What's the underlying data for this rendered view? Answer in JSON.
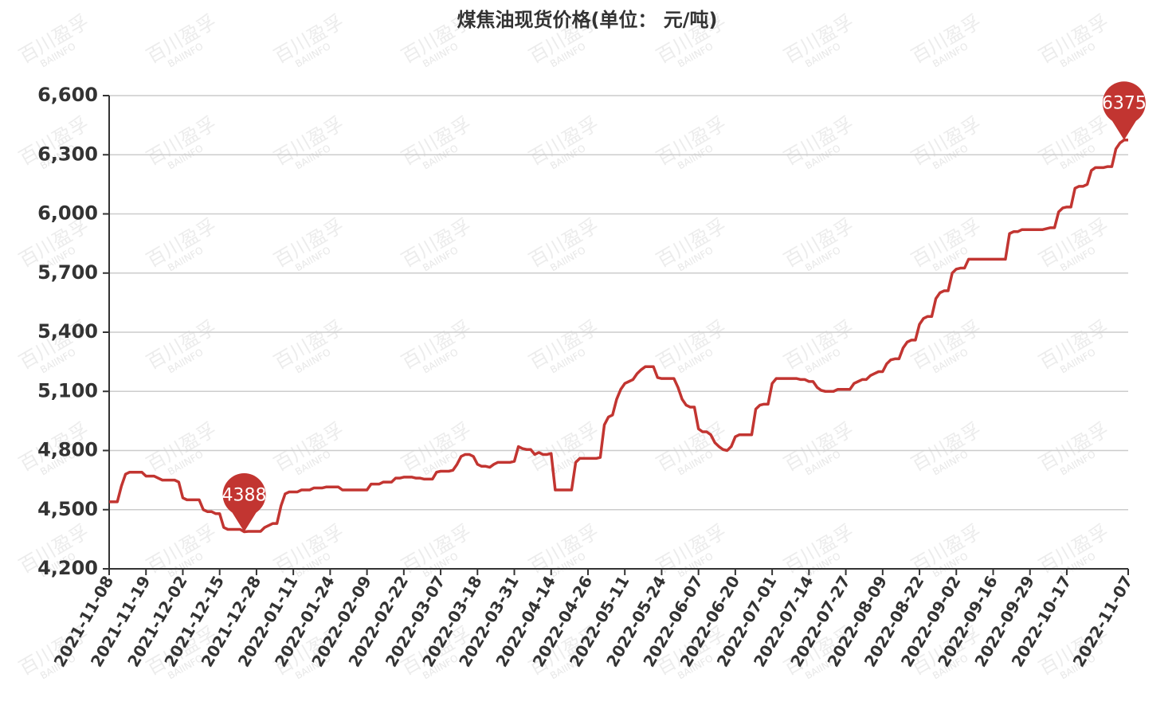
{
  "chart_data": {
    "type": "line",
    "title": "煤焦油现货价格(单位： 元/吨)",
    "watermark": "百川盈孚",
    "watermark_sub": "BAIINFO",
    "color": "#c23531",
    "ylim": [
      4200,
      6600
    ],
    "yticks": [
      {
        "value": 4200,
        "label": "4,200"
      },
      {
        "value": 4500,
        "label": "4,500"
      },
      {
        "value": 4800,
        "label": "4,800"
      },
      {
        "value": 5100,
        "label": "5,100"
      },
      {
        "value": 5400,
        "label": "5,400"
      },
      {
        "value": 5700,
        "label": "5,700"
      },
      {
        "value": 6000,
        "label": "6,000"
      },
      {
        "value": 6300,
        "label": "6,300"
      },
      {
        "value": 6600,
        "label": "6,600"
      }
    ],
    "grid": true,
    "categories": [
      "2021-11-08",
      null,
      null,
      null,
      null,
      null,
      null,
      null,
      null,
      "2021-11-19",
      null,
      null,
      null,
      null,
      null,
      null,
      null,
      null,
      "2021-12-02",
      null,
      null,
      null,
      null,
      null,
      null,
      null,
      null,
      "2021-12-15",
      null,
      null,
      null,
      null,
      null,
      null,
      null,
      null,
      "2021-12-28",
      null,
      null,
      null,
      null,
      null,
      null,
      null,
      null,
      "2022-01-11",
      null,
      null,
      null,
      null,
      null,
      null,
      null,
      null,
      "2022-01-24",
      null,
      null,
      null,
      null,
      null,
      null,
      null,
      null,
      "2022-02-09",
      null,
      null,
      null,
      null,
      null,
      null,
      null,
      null,
      "2022-02-22",
      null,
      null,
      null,
      null,
      null,
      null,
      null,
      null,
      "2022-03-07",
      null,
      null,
      null,
      null,
      null,
      null,
      null,
      null,
      "2022-03-18",
      null,
      null,
      null,
      null,
      null,
      null,
      null,
      null,
      "2022-03-31",
      null,
      null,
      null,
      null,
      null,
      null,
      null,
      null,
      "2022-04-14",
      null,
      null,
      null,
      null,
      null,
      null,
      null,
      null,
      "2022-04-26",
      null,
      null,
      null,
      null,
      null,
      null,
      null,
      null,
      "2022-05-11",
      null,
      null,
      null,
      null,
      null,
      null,
      null,
      null,
      "2022-05-24",
      null,
      null,
      null,
      null,
      null,
      null,
      null,
      null,
      "2022-06-07",
      null,
      null,
      null,
      null,
      null,
      null,
      null,
      null,
      "2022-06-20",
      null,
      null,
      null,
      null,
      null,
      null,
      null,
      null,
      "2022-07-01",
      null,
      null,
      null,
      null,
      null,
      null,
      null,
      null,
      "2022-07-14",
      null,
      null,
      null,
      null,
      null,
      null,
      null,
      null,
      "2022-07-27",
      null,
      null,
      null,
      null,
      null,
      null,
      null,
      null,
      "2022-08-09",
      null,
      null,
      null,
      null,
      null,
      null,
      null,
      null,
      "2022-08-22",
      null,
      null,
      null,
      null,
      null,
      null,
      null,
      null,
      "2022-09-02",
      null,
      null,
      null,
      null,
      null,
      null,
      null,
      null,
      "2022-09-16",
      null,
      null,
      null,
      null,
      null,
      null,
      null,
      null,
      "2022-09-29",
      null,
      null,
      null,
      null,
      null,
      null,
      null,
      null,
      "2022-10-17",
      null,
      null,
      null,
      null,
      null,
      null,
      null,
      null,
      null,
      null,
      null,
      null,
      null,
      null,
      "2022-11-07"
    ],
    "values": [
      4540,
      4540,
      4540,
      4620,
      4680,
      4690,
      4690,
      4690,
      4690,
      4670,
      4670,
      4670,
      4660,
      4650,
      4650,
      4650,
      4650,
      4640,
      4560,
      4550,
      4550,
      4550,
      4550,
      4500,
      4490,
      4490,
      4480,
      4480,
      4410,
      4400,
      4400,
      4400,
      4400,
      4388,
      4390,
      4390,
      4390,
      4390,
      4410,
      4420,
      4430,
      4430,
      4520,
      4580,
      4590,
      4590,
      4590,
      4600,
      4600,
      4600,
      4610,
      4610,
      4610,
      4615,
      4615,
      4615,
      4615,
      4600,
      4600,
      4600,
      4600,
      4600,
      4600,
      4600,
      4630,
      4630,
      4630,
      4640,
      4640,
      4640,
      4660,
      4660,
      4665,
      4665,
      4665,
      4660,
      4660,
      4655,
      4655,
      4655,
      4690,
      4695,
      4695,
      4695,
      4700,
      4730,
      4770,
      4780,
      4780,
      4770,
      4730,
      4720,
      4720,
      4715,
      4730,
      4740,
      4740,
      4740,
      4740,
      4745,
      4820,
      4810,
      4805,
      4805,
      4780,
      4790,
      4780,
      4780,
      4785,
      4600,
      4600,
      4600,
      4600,
      4600,
      4740,
      4760,
      4760,
      4760,
      4760,
      4760,
      4765,
      4930,
      4970,
      4980,
      5060,
      5110,
      5140,
      5150,
      5160,
      5190,
      5210,
      5225,
      5225,
      5225,
      5170,
      5165,
      5165,
      5165,
      5165,
      5120,
      5060,
      5030,
      5020,
      5020,
      4910,
      4895,
      4895,
      4880,
      4840,
      4820,
      4805,
      4800,
      4820,
      4870,
      4880,
      4880,
      4880,
      4880,
      5010,
      5030,
      5035,
      5035,
      5140,
      5165,
      5165,
      5165,
      5165,
      5165,
      5165,
      5160,
      5160,
      5150,
      5150,
      5120,
      5105,
      5100,
      5100,
      5100,
      5110,
      5110,
      5110,
      5110,
      5140,
      5150,
      5160,
      5160,
      5180,
      5190,
      5200,
      5200,
      5240,
      5260,
      5265,
      5265,
      5320,
      5350,
      5360,
      5360,
      5440,
      5470,
      5480,
      5480,
      5570,
      5600,
      5610,
      5610,
      5700,
      5720,
      5725,
      5725,
      5770,
      5770,
      5770,
      5770,
      5770,
      5770,
      5770,
      5770,
      5770,
      5770,
      5900,
      5910,
      5910,
      5920,
      5920,
      5920,
      5920,
      5920,
      5920,
      5925,
      5930,
      5930,
      6010,
      6030,
      6035,
      6035,
      6130,
      6140,
      6140,
      6150,
      6220,
      6235,
      6235,
      6235,
      6240,
      6240,
      6330,
      6360,
      6375,
      6375
    ]
  }
}
